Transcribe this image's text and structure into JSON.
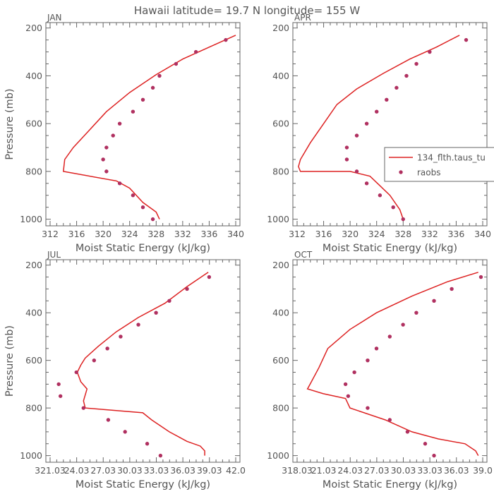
{
  "figure": {
    "title": "Hawaii  latitude= 19.7 N longitude= 155 W"
  },
  "chart_data": [
    {
      "type": "line",
      "panel": "JAN",
      "xlabel": "Moist Static Energy (kJ/kg)",
      "ylabel": "Pressure (mb)",
      "xlim": [
        312,
        340
      ],
      "ylim": [
        1010,
        195
      ],
      "xticks": [
        312,
        316,
        320,
        324,
        328,
        332,
        336,
        340
      ],
      "xtick_labels": [
        "312",
        "316",
        "320",
        "324",
        "328",
        "332",
        "336",
        "340"
      ],
      "yticks": [
        200,
        400,
        600,
        800,
        1000
      ],
      "ytick_labels": [
        "200",
        "400",
        "600",
        "800",
        "1000"
      ],
      "grid": false,
      "series": [
        {
          "name": "",
          "kind": "line",
          "color": "#dd2222",
          "points": [
            [
              340.0,
              230
            ],
            [
              336.0,
              280
            ],
            [
              332.0,
              330
            ],
            [
              328.0,
              395
            ],
            [
              324.0,
              470
            ],
            [
              320.5,
              550
            ],
            [
              318.0,
              625
            ],
            [
              315.5,
              700
            ],
            [
              314.2,
              750
            ],
            [
              314.0,
              800
            ],
            [
              322.0,
              840
            ],
            [
              324.0,
              870
            ],
            [
              326.0,
              930
            ],
            [
              328.0,
              970
            ],
            [
              328.5,
              1000
            ]
          ]
        },
        {
          "name": "",
          "kind": "scatter",
          "color": "#b03060",
          "points": [
            [
              338.5,
              250
            ],
            [
              334.0,
              300
            ],
            [
              331.0,
              350
            ],
            [
              328.5,
              400
            ],
            [
              327.5,
              450
            ],
            [
              326.0,
              500
            ],
            [
              324.5,
              550
            ],
            [
              322.5,
              600
            ],
            [
              321.5,
              650
            ],
            [
              320.5,
              700
            ],
            [
              320.0,
              750
            ],
            [
              320.5,
              800
            ],
            [
              322.5,
              850
            ],
            [
              324.5,
              900
            ],
            [
              326.0,
              950
            ],
            [
              327.5,
              1000
            ]
          ]
        }
      ]
    },
    {
      "type": "line",
      "panel": "APR",
      "xlabel": "Moist Static Energy (kJ/kg)",
      "ylabel": "",
      "xlim": [
        312,
        340
      ],
      "ylim": [
        1010,
        195
      ],
      "xticks": [
        312,
        316,
        320,
        324,
        328,
        332,
        336,
        340
      ],
      "xtick_labels": [
        "312",
        "316",
        "320",
        "324",
        "328",
        "332",
        "336",
        "340"
      ],
      "yticks": [
        200,
        400,
        600,
        800,
        1000
      ],
      "ytick_labels": [
        "200",
        "400",
        "600",
        "800",
        "1000"
      ],
      "grid": false,
      "legend": {
        "placement": "right",
        "entries": [
          {
            "label": "134_flth.taus_tu",
            "kind": "line",
            "color": "#dd2222"
          },
          {
            "label": "raobs",
            "kind": "marker",
            "color": "#b03060"
          }
        ]
      },
      "series": [
        {
          "name": "134_flth.taus_tu",
          "kind": "line",
          "color": "#dd2222",
          "points": [
            [
              336.5,
              230
            ],
            [
              333.0,
              280
            ],
            [
              329.0,
              330
            ],
            [
              325.0,
              390
            ],
            [
              321.0,
              455
            ],
            [
              318.0,
              520
            ],
            [
              316.0,
              600
            ],
            [
              314.0,
              680
            ],
            [
              312.5,
              750
            ],
            [
              312.2,
              780
            ],
            [
              312.5,
              800
            ],
            [
              320.0,
              800
            ],
            [
              323.0,
              820
            ],
            [
              324.5,
              860
            ],
            [
              326.0,
              900
            ],
            [
              327.5,
              960
            ],
            [
              328.0,
              1000
            ]
          ]
        },
        {
          "name": "raobs",
          "kind": "scatter",
          "color": "#b03060",
          "points": [
            [
              337.5,
              250
            ],
            [
              332.0,
              300
            ],
            [
              330.0,
              350
            ],
            [
              328.5,
              400
            ],
            [
              327.0,
              450
            ],
            [
              325.5,
              500
            ],
            [
              324.0,
              550
            ],
            [
              322.5,
              600
            ],
            [
              321.0,
              650
            ],
            [
              319.5,
              700
            ],
            [
              319.5,
              750
            ],
            [
              321.0,
              800
            ],
            [
              322.5,
              850
            ],
            [
              324.5,
              900
            ],
            [
              326.5,
              950
            ],
            [
              328.0,
              1000
            ]
          ]
        }
      ]
    },
    {
      "type": "line",
      "panel": "JUL",
      "xlabel": "Moist Static Energy (kJ/kg)",
      "ylabel": "Pressure (mb)",
      "xlim": [
        321.03,
        342.0
      ],
      "ylim": [
        1010,
        195
      ],
      "xticks": [
        321.03,
        324.03,
        327.03,
        330.03,
        333.03,
        336.03,
        339.03,
        342.0
      ],
      "xtick_labels": [
        "321.03",
        "24.03",
        "27.03",
        "30.03",
        "33.03",
        "36.03",
        "39.03",
        "42.0"
      ],
      "yticks": [
        200,
        400,
        600,
        800,
        1000
      ],
      "ytick_labels": [
        "200",
        "400",
        "600",
        "800",
        "1000"
      ],
      "grid": false,
      "series": [
        {
          "name": "",
          "kind": "line",
          "color": "#dd2222",
          "points": [
            [
              338.9,
              230
            ],
            [
              336.5,
              290
            ],
            [
              334.0,
              360
            ],
            [
              331.0,
              420
            ],
            [
              328.5,
              480
            ],
            [
              326.5,
              540
            ],
            [
              325.0,
              590
            ],
            [
              324.5,
              620
            ],
            [
              324.1,
              650
            ],
            [
              324.5,
              690
            ],
            [
              325.2,
              720
            ],
            [
              324.8,
              770
            ],
            [
              325.0,
              800
            ],
            [
              331.5,
              820
            ],
            [
              332.5,
              850
            ],
            [
              334.5,
              900
            ],
            [
              336.5,
              940
            ],
            [
              338.0,
              960
            ],
            [
              338.5,
              980
            ],
            [
              338.5,
              1000
            ]
          ]
        },
        {
          "name": "",
          "kind": "scatter",
          "color": "#b03060",
          "points": [
            [
              339.0,
              250
            ],
            [
              336.5,
              300
            ],
            [
              334.5,
              350
            ],
            [
              333.0,
              400
            ],
            [
              331.0,
              450
            ],
            [
              329.0,
              500
            ],
            [
              327.5,
              550
            ],
            [
              326.0,
              600
            ],
            [
              324.0,
              650
            ],
            [
              322.0,
              700
            ],
            [
              322.2,
              750
            ],
            [
              324.8,
              800
            ],
            [
              327.6,
              850
            ],
            [
              329.5,
              900
            ],
            [
              332.0,
              950
            ],
            [
              333.5,
              1000
            ]
          ]
        }
      ]
    },
    {
      "type": "line",
      "panel": "OCT",
      "xlabel": "Moist Static Energy (kJ/kg)",
      "ylabel": "",
      "xlim": [
        318.03,
        339.0
      ],
      "ylim": [
        1010,
        195
      ],
      "xticks": [
        318.03,
        321.03,
        324.03,
        327.03,
        330.03,
        333.03,
        336.03,
        339.0
      ],
      "xtick_labels": [
        "318.03",
        "21.03",
        "24.03",
        "27.03",
        "30.03",
        "33.03",
        "36.03",
        "39.0"
      ],
      "yticks": [
        200,
        400,
        600,
        800,
        1000
      ],
      "ytick_labels": [
        "200",
        "400",
        "600",
        "800",
        "1000"
      ],
      "grid": false,
      "series": [
        {
          "name": "",
          "kind": "line",
          "color": "#dd2222",
          "points": [
            [
              338.5,
              230
            ],
            [
              335.0,
              270
            ],
            [
              331.0,
              330
            ],
            [
              327.0,
              400
            ],
            [
              324.0,
              470
            ],
            [
              321.5,
              550
            ],
            [
              320.5,
              630
            ],
            [
              319.5,
              700
            ],
            [
              319.2,
              720
            ],
            [
              321.0,
              740
            ],
            [
              323.5,
              760
            ],
            [
              324.0,
              800
            ],
            [
              328.0,
              850
            ],
            [
              331.0,
              900
            ],
            [
              334.0,
              930
            ],
            [
              337.0,
              950
            ],
            [
              338.2,
              980
            ],
            [
              338.5,
              1000
            ]
          ]
        },
        {
          "name": "",
          "kind": "scatter",
          "color": "#b03060",
          "points": [
            [
              338.8,
              250
            ],
            [
              335.5,
              300
            ],
            [
              333.5,
              350
            ],
            [
              331.5,
              400
            ],
            [
              330.0,
              450
            ],
            [
              328.5,
              500
            ],
            [
              327.0,
              550
            ],
            [
              326.0,
              600
            ],
            [
              324.5,
              650
            ],
            [
              323.5,
              700
            ],
            [
              323.8,
              750
            ],
            [
              326.0,
              800
            ],
            [
              328.5,
              850
            ],
            [
              330.5,
              900
            ],
            [
              332.5,
              950
            ],
            [
              333.5,
              1000
            ]
          ]
        }
      ]
    }
  ]
}
